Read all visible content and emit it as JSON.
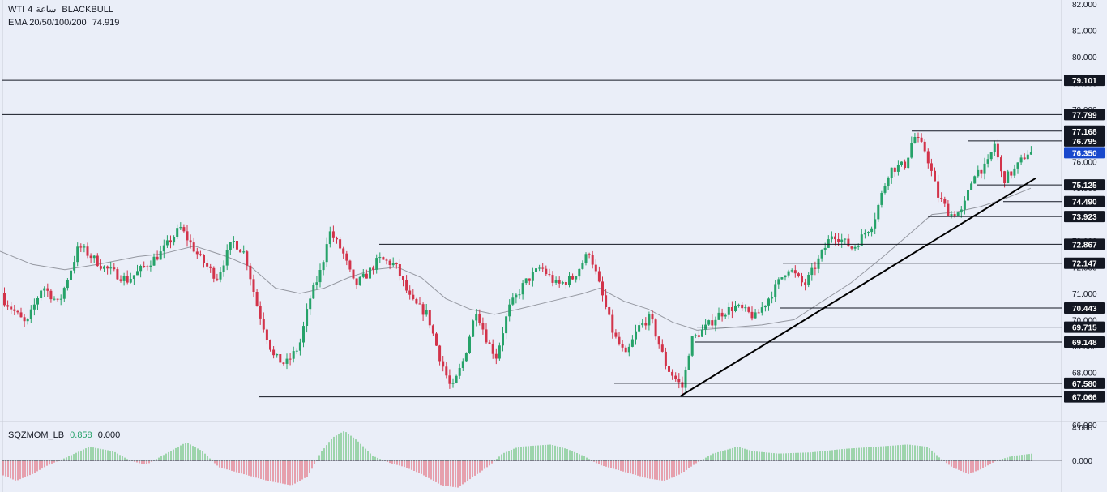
{
  "symbol_line": {
    "symbol": "WTI",
    "interval": "4",
    "interval_suffix": "ساعة",
    "broker": "BLACKBULL"
  },
  "ema_line": {
    "label": "EMA 20/50/100/200",
    "value": "74.919"
  },
  "oscillator": {
    "label": "SQZMOM_LB",
    "value1": "0.858",
    "value2": "0.000",
    "axis_labels": [
      "4.000",
      "0.000"
    ]
  },
  "colors": {
    "background": "#eaeef8",
    "bull": "#26a269",
    "bear": "#d2334a",
    "ema": "#9598a1",
    "level_line": "#131722",
    "label_bg": "#131722",
    "last_price_bg": "#1848cc",
    "hist_bull": "#7cc98a",
    "hist_bear": "#e57f8d"
  },
  "chart_data": {
    "type": "candlestick",
    "y_range": [
      65.5,
      82.1
    ],
    "y_axis_ticks": [
      "82.000",
      "81.000",
      "80.000",
      "79.000",
      "78.000",
      "77.000",
      "76.000",
      "75.000",
      "74.000",
      "73.000",
      "72.000",
      "71.000",
      "70.000",
      "69.000",
      "68.000",
      "67.000",
      "66.000"
    ],
    "price_path": [
      [
        0,
        71.0
      ],
      [
        15,
        70.5
      ],
      [
        35,
        69.8
      ],
      [
        55,
        71.3
      ],
      [
        75,
        70.6
      ],
      [
        100,
        72.8
      ],
      [
        130,
        72.0
      ],
      [
        160,
        71.5
      ],
      [
        200,
        72.5
      ],
      [
        225,
        73.5
      ],
      [
        250,
        72.3
      ],
      [
        270,
        71.6
      ],
      [
        290,
        73.0
      ],
      [
        305,
        72.5
      ],
      [
        320,
        70.5
      ],
      [
        340,
        68.6
      ],
      [
        355,
        68.3
      ],
      [
        372,
        69.0
      ],
      [
        385,
        70.8
      ],
      [
        400,
        72.0
      ],
      [
        408,
        73.4
      ],
      [
        425,
        72.6
      ],
      [
        440,
        71.3
      ],
      [
        455,
        71.7
      ],
      [
        470,
        72.3
      ],
      [
        490,
        72.1
      ],
      [
        510,
        70.7
      ],
      [
        530,
        70.2
      ],
      [
        545,
        68.6
      ],
      [
        560,
        67.3
      ],
      [
        575,
        68.5
      ],
      [
        590,
        70.4
      ],
      [
        605,
        69.1
      ],
      [
        615,
        68.6
      ],
      [
        630,
        70.4
      ],
      [
        650,
        71.4
      ],
      [
        670,
        72.0
      ],
      [
        690,
        71.3
      ],
      [
        710,
        71.6
      ],
      [
        730,
        72.6
      ],
      [
        745,
        71.0
      ],
      [
        760,
        69.4
      ],
      [
        775,
        68.6
      ],
      [
        790,
        69.7
      ],
      [
        805,
        70.1
      ],
      [
        825,
        68.2
      ],
      [
        845,
        67.4
      ],
      [
        855,
        69.2
      ],
      [
        870,
        69.6
      ],
      [
        890,
        70.2
      ],
      [
        910,
        70.5
      ],
      [
        935,
        70.1
      ],
      [
        955,
        71.0
      ],
      [
        975,
        72.0
      ],
      [
        995,
        71.3
      ],
      [
        1010,
        72.1
      ],
      [
        1030,
        73.3
      ],
      [
        1055,
        72.7
      ],
      [
        1080,
        73.7
      ],
      [
        1100,
        75.7
      ],
      [
        1120,
        75.9
      ],
      [
        1130,
        77.0
      ],
      [
        1145,
        76.4
      ],
      [
        1160,
        74.7
      ],
      [
        1175,
        74.0
      ],
      [
        1190,
        74.1
      ],
      [
        1205,
        75.6
      ],
      [
        1220,
        75.8
      ],
      [
        1230,
        76.7
      ],
      [
        1240,
        75.3
      ],
      [
        1255,
        75.7
      ],
      [
        1270,
        76.35
      ]
    ],
    "ema_path": [
      [
        0,
        72.6
      ],
      [
        40,
        72.1
      ],
      [
        80,
        71.9
      ],
      [
        120,
        72.1
      ],
      [
        170,
        72.4
      ],
      [
        200,
        72.5
      ],
      [
        240,
        72.8
      ],
      [
        280,
        72.4
      ],
      [
        310,
        72.0
      ],
      [
        340,
        71.2
      ],
      [
        370,
        71.0
      ],
      [
        400,
        71.2
      ],
      [
        430,
        71.6
      ],
      [
        460,
        71.9
      ],
      [
        490,
        72.0
      ],
      [
        520,
        71.6
      ],
      [
        550,
        70.8
      ],
      [
        580,
        70.4
      ],
      [
        610,
        70.2
      ],
      [
        640,
        70.4
      ],
      [
        680,
        70.7
      ],
      [
        720,
        71.0
      ],
      [
        740,
        71.2
      ],
      [
        770,
        70.7
      ],
      [
        800,
        70.4
      ],
      [
        830,
        69.9
      ],
      [
        860,
        69.6
      ],
      [
        900,
        69.7
      ],
      [
        940,
        69.8
      ],
      [
        980,
        70.0
      ],
      [
        1010,
        70.6
      ],
      [
        1050,
        71.4
      ],
      [
        1090,
        72.4
      ],
      [
        1120,
        73.2
      ],
      [
        1150,
        74.0
      ],
      [
        1180,
        74.1
      ],
      [
        1210,
        74.3
      ],
      [
        1240,
        74.6
      ],
      [
        1272,
        75.0
      ]
    ],
    "levels": [
      {
        "price": 79.101,
        "label": "79.101",
        "x_start": 3
      },
      {
        "price": 77.799,
        "label": "77.799",
        "x_start": 3
      },
      {
        "price": 77.168,
        "label": "77.168",
        "x_start": 1125
      },
      {
        "price": 76.795,
        "label": "76.795",
        "x_start": 1195
      },
      {
        "price": 75.125,
        "label": "75.125",
        "x_start": 1205
      },
      {
        "price": 74.49,
        "label": "74.490",
        "x_start": 1238
      },
      {
        "price": 73.923,
        "label": "73.923",
        "x_start": 1145
      },
      {
        "price": 72.867,
        "label": "72.867",
        "x_start": 468
      },
      {
        "price": 72.147,
        "label": "72.147",
        "x_start": 966
      },
      {
        "price": 70.443,
        "label": "70.443",
        "x_start": 962
      },
      {
        "price": 69.715,
        "label": "69.715",
        "x_start": 860
      },
      {
        "price": 69.148,
        "label": "69.148",
        "x_start": 858
      },
      {
        "price": 67.58,
        "label": "67.580",
        "x_start": 758
      },
      {
        "price": 67.066,
        "label": "67.066",
        "x_start": 320
      }
    ],
    "last_price": {
      "price": 76.35,
      "label": "76.350"
    },
    "trendline": {
      "x1": 840,
      "p1": 67.1,
      "x2": 1278,
      "p2": 75.38
    },
    "squeeze_histogram": [
      [
        0,
        -0.6
      ],
      [
        20,
        -0.9
      ],
      [
        40,
        -0.6
      ],
      [
        60,
        -0.2
      ],
      [
        80,
        0.1
      ],
      [
        110,
        0.6
      ],
      [
        140,
        0.4
      ],
      [
        160,
        0.0
      ],
      [
        180,
        -0.2
      ],
      [
        200,
        0.2
      ],
      [
        230,
        0.8
      ],
      [
        250,
        0.4
      ],
      [
        270,
        -0.3
      ],
      [
        300,
        -0.6
      ],
      [
        330,
        -0.9
      ],
      [
        360,
        -1.1
      ],
      [
        380,
        -0.7
      ],
      [
        395,
        0.3
      ],
      [
        410,
        1.0
      ],
      [
        425,
        1.3
      ],
      [
        440,
        0.9
      ],
      [
        460,
        0.2
      ],
      [
        480,
        -0.1
      ],
      [
        500,
        -0.3
      ],
      [
        520,
        -0.6
      ],
      [
        545,
        -1.1
      ],
      [
        565,
        -1.2
      ],
      [
        585,
        -0.7
      ],
      [
        605,
        -0.2
      ],
      [
        620,
        0.3
      ],
      [
        640,
        0.6
      ],
      [
        680,
        0.7
      ],
      [
        700,
        0.5
      ],
      [
        720,
        0.2
      ],
      [
        740,
        -0.2
      ],
      [
        770,
        -0.5
      ],
      [
        800,
        -0.8
      ],
      [
        820,
        -0.9
      ],
      [
        840,
        -0.6
      ],
      [
        860,
        -0.1
      ],
      [
        880,
        0.3
      ],
      [
        910,
        0.6
      ],
      [
        930,
        0.4
      ],
      [
        960,
        0.3
      ],
      [
        1000,
        0.35
      ],
      [
        1040,
        0.5
      ],
      [
        1080,
        0.6
      ],
      [
        1120,
        0.7
      ],
      [
        1145,
        0.6
      ],
      [
        1160,
        0.1
      ],
      [
        1175,
        -0.3
      ],
      [
        1195,
        -0.6
      ],
      [
        1210,
        -0.4
      ],
      [
        1230,
        0.0
      ],
      [
        1250,
        0.2
      ],
      [
        1274,
        0.3
      ]
    ]
  }
}
